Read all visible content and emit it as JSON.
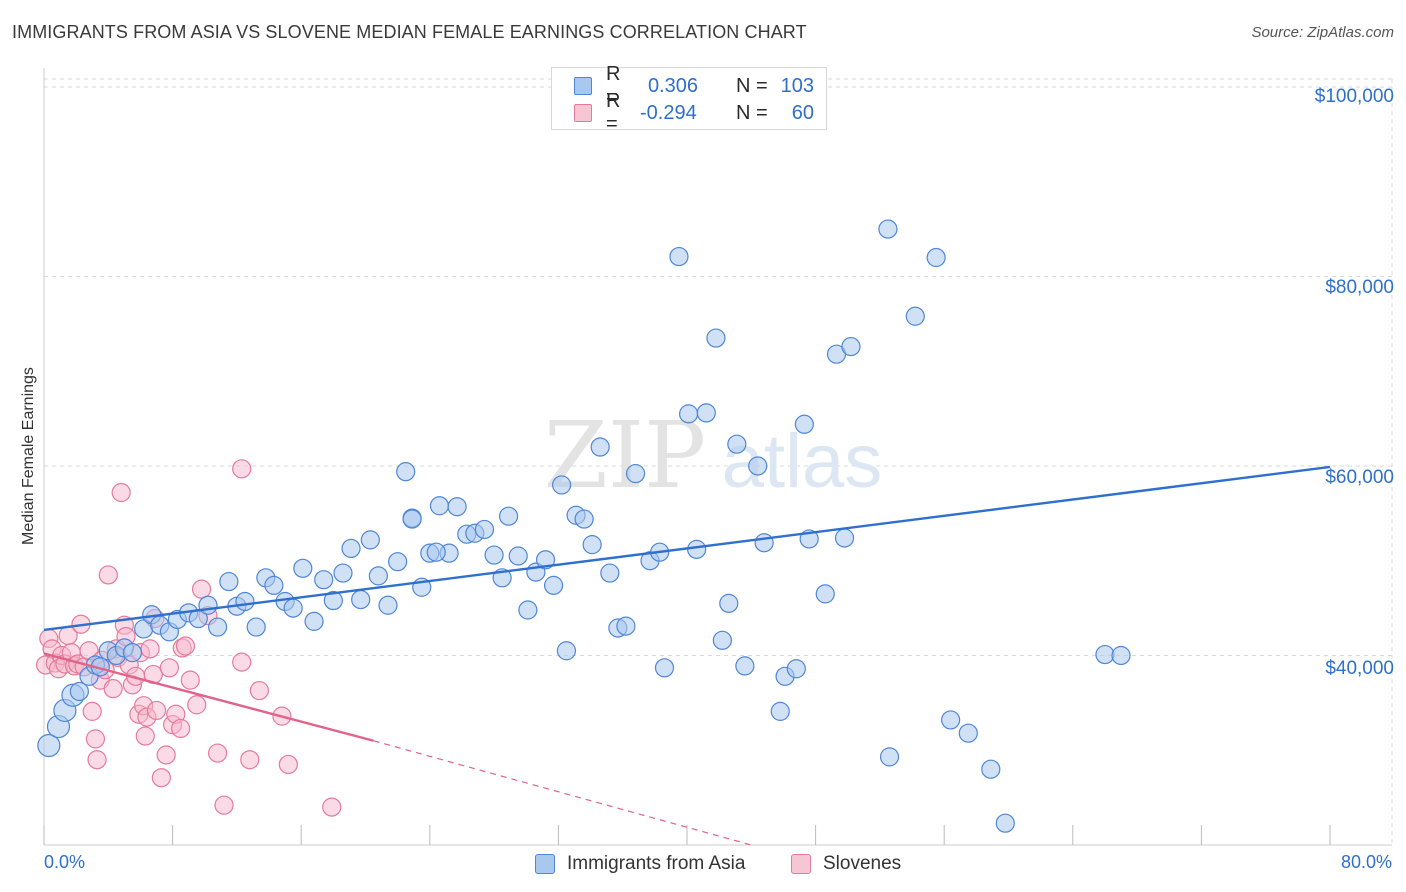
{
  "title": "IMMIGRANTS FROM ASIA VS SLOVENE MEDIAN FEMALE EARNINGS CORRELATION CHART",
  "source": "Source: ZipAtlas.com",
  "watermark": {
    "zip": "ZIP",
    "atlas": "atlas"
  },
  "colors": {
    "blue_fill": "#a9c8ef",
    "blue_stroke": "#4f86d6",
    "blue_line": "#2e6fcf",
    "pink_fill": "#f6b8cb",
    "pink_stroke": "#e57a9c",
    "pink_line": "#e0638c",
    "tick_text": "#2f6fcc",
    "grid": "#d9d9d9"
  },
  "legend": {
    "rows": [
      {
        "r_label": "R =",
        "r_value": "0.306",
        "n_label": "N =",
        "n_value": "103"
      },
      {
        "r_label": "R =",
        "r_value": "-0.294",
        "n_label": "N =",
        "n_value": "60"
      }
    ],
    "series": [
      "Immigrants from Asia",
      "Slovenes"
    ]
  },
  "chart_data": {
    "type": "scatter",
    "title": "IMMIGRANTS FROM ASIA VS SLOVENE MEDIAN FEMALE EARNINGS CORRELATION CHART",
    "xlabel": "",
    "ylabel": "Median Female Earnings",
    "xlim": [
      0,
      80
    ],
    "ylim": [
      20000,
      102000
    ],
    "x_tick_labels": [
      "0.0%",
      "80.0%"
    ],
    "y_ticks": [
      40000,
      60000,
      80000,
      100000
    ],
    "y_tick_labels": [
      "$40,000",
      "$60,000",
      "$80,000",
      "$100,000"
    ],
    "grid": true,
    "legend_position": "top-center",
    "series": [
      {
        "name": "Immigrants from Asia",
        "r": 0.306,
        "n": 103,
        "trend": {
          "x": [
            0,
            80
          ],
          "y": [
            42700,
            59900
          ],
          "style": "solid"
        },
        "points": [
          [
            0.3,
            30500
          ],
          [
            0.9,
            32500
          ],
          [
            1.3,
            34200
          ],
          [
            1.8,
            35800
          ],
          [
            2.2,
            36200
          ],
          [
            2.8,
            37800
          ],
          [
            3.2,
            39000
          ],
          [
            3.5,
            38800
          ],
          [
            4.0,
            40500
          ],
          [
            4.5,
            40000
          ],
          [
            5.0,
            40800
          ],
          [
            5.5,
            40300
          ],
          [
            6.2,
            42800
          ],
          [
            6.7,
            44300
          ],
          [
            7.2,
            43200
          ],
          [
            7.8,
            42500
          ],
          [
            8.3,
            43800
          ],
          [
            9.0,
            44500
          ],
          [
            9.6,
            43900
          ],
          [
            10.2,
            45300
          ],
          [
            10.8,
            43000
          ],
          [
            11.5,
            47800
          ],
          [
            12.0,
            45200
          ],
          [
            12.5,
            45700
          ],
          [
            13.2,
            43000
          ],
          [
            13.8,
            48200
          ],
          [
            14.3,
            47400
          ],
          [
            15.0,
            45700
          ],
          [
            15.5,
            45000
          ],
          [
            16.1,
            49200
          ],
          [
            16.8,
            43600
          ],
          [
            17.4,
            48000
          ],
          [
            18.0,
            45800
          ],
          [
            18.6,
            48700
          ],
          [
            19.1,
            51300
          ],
          [
            19.7,
            45900
          ],
          [
            20.3,
            52200
          ],
          [
            20.8,
            48400
          ],
          [
            21.4,
            45300
          ],
          [
            22.0,
            49900
          ],
          [
            22.5,
            59400
          ],
          [
            22.9,
            54500
          ],
          [
            23.5,
            47200
          ],
          [
            24.0,
            50800
          ],
          [
            24.6,
            55800
          ],
          [
            25.2,
            50800
          ],
          [
            25.7,
            55700
          ],
          [
            26.3,
            52800
          ],
          [
            26.8,
            52900
          ],
          [
            27.4,
            53300
          ],
          [
            28.0,
            50600
          ],
          [
            28.5,
            48200
          ],
          [
            28.9,
            54700
          ],
          [
            29.5,
            50500
          ],
          [
            30.1,
            44800
          ],
          [
            30.6,
            48800
          ],
          [
            31.2,
            50100
          ],
          [
            31.7,
            47400
          ],
          [
            32.2,
            58000
          ],
          [
            32.5,
            40500
          ],
          [
            33.1,
            54800
          ],
          [
            33.6,
            54400
          ],
          [
            34.1,
            51700
          ],
          [
            34.6,
            62000
          ],
          [
            35.2,
            48700
          ],
          [
            35.7,
            42900
          ],
          [
            36.2,
            43100
          ],
          [
            36.8,
            59200
          ],
          [
            37.7,
            50000
          ],
          [
            38.3,
            50900
          ],
          [
            38.6,
            38700
          ],
          [
            39.5,
            82100
          ],
          [
            40.1,
            65500
          ],
          [
            40.6,
            51200
          ],
          [
            41.2,
            65600
          ],
          [
            41.8,
            73500
          ],
          [
            42.2,
            41600
          ],
          [
            42.6,
            45500
          ],
          [
            43.1,
            62300
          ],
          [
            43.6,
            38900
          ],
          [
            44.4,
            60000
          ],
          [
            44.8,
            51900
          ],
          [
            45.8,
            34100
          ],
          [
            46.1,
            37800
          ],
          [
            46.8,
            38600
          ],
          [
            47.3,
            64400
          ],
          [
            47.6,
            52300
          ],
          [
            48.6,
            46500
          ],
          [
            49.3,
            71800
          ],
          [
            49.8,
            52400
          ],
          [
            50.2,
            72600
          ],
          [
            52.5,
            85000
          ],
          [
            52.6,
            29300
          ],
          [
            54.2,
            75800
          ],
          [
            55.5,
            82000
          ],
          [
            56.4,
            33200
          ],
          [
            57.5,
            31800
          ],
          [
            58.9,
            28000
          ],
          [
            59.8,
            22300
          ],
          [
            66.0,
            40100
          ],
          [
            67.0,
            40000
          ],
          [
            22.9,
            54400
          ],
          [
            24.4,
            50900
          ]
        ]
      },
      {
        "name": "Slovenes",
        "r": -0.294,
        "n": 60,
        "trend": {
          "x": [
            0,
            20.5
          ],
          "y": [
            40200,
            31000
          ],
          "style": "solid",
          "dashed_extension_to": [
            44.0,
            20000
          ]
        },
        "points": [
          [
            0.1,
            39000
          ],
          [
            0.3,
            41800
          ],
          [
            0.5,
            40700
          ],
          [
            0.7,
            39200
          ],
          [
            0.9,
            38600
          ],
          [
            1.1,
            40000
          ],
          [
            1.3,
            39100
          ],
          [
            1.5,
            42100
          ],
          [
            1.7,
            40300
          ],
          [
            1.9,
            38900
          ],
          [
            2.1,
            39100
          ],
          [
            2.3,
            43300
          ],
          [
            2.5,
            38800
          ],
          [
            2.8,
            40500
          ],
          [
            3.0,
            34100
          ],
          [
            3.2,
            31200
          ],
          [
            3.3,
            29000
          ],
          [
            3.5,
            37400
          ],
          [
            3.6,
            39500
          ],
          [
            3.8,
            38500
          ],
          [
            4.0,
            48500
          ],
          [
            4.3,
            36500
          ],
          [
            4.5,
            40700
          ],
          [
            4.6,
            39800
          ],
          [
            4.8,
            57200
          ],
          [
            5.0,
            43200
          ],
          [
            5.1,
            42000
          ],
          [
            5.3,
            39000
          ],
          [
            5.5,
            36900
          ],
          [
            5.7,
            37800
          ],
          [
            5.9,
            33800
          ],
          [
            6.0,
            40300
          ],
          [
            6.2,
            34700
          ],
          [
            6.3,
            31500
          ],
          [
            6.4,
            33500
          ],
          [
            6.6,
            40700
          ],
          [
            6.8,
            38000
          ],
          [
            7.0,
            34200
          ],
          [
            7.3,
            27100
          ],
          [
            7.6,
            29500
          ],
          [
            7.8,
            38700
          ],
          [
            8.0,
            32700
          ],
          [
            8.2,
            33800
          ],
          [
            8.5,
            32300
          ],
          [
            8.6,
            40800
          ],
          [
            8.8,
            41000
          ],
          [
            9.1,
            37400
          ],
          [
            9.5,
            34800
          ],
          [
            9.8,
            47000
          ],
          [
            10.2,
            44200
          ],
          [
            10.8,
            29700
          ],
          [
            11.2,
            24200
          ],
          [
            12.3,
            59700
          ],
          [
            12.3,
            39300
          ],
          [
            12.8,
            29000
          ],
          [
            13.4,
            36300
          ],
          [
            14.8,
            33600
          ],
          [
            15.2,
            28500
          ],
          [
            17.9,
            24000
          ],
          [
            6.9,
            43900
          ]
        ]
      }
    ]
  }
}
